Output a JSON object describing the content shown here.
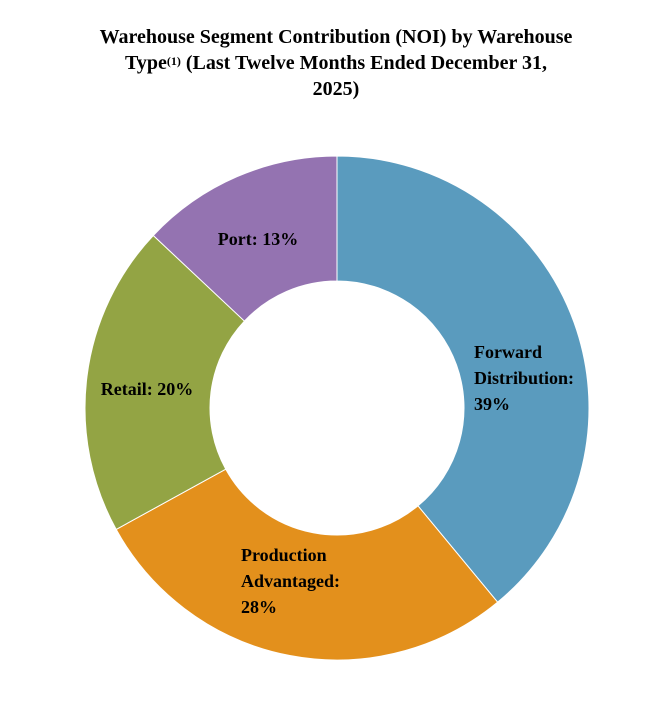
{
  "title": {
    "line1": "Warehouse Segment Contribution (NOI) by Warehouse",
    "line2_a": "Type",
    "line2_sup": "(1)",
    "line2_b": " (Last Twelve Months Ended December 31,",
    "line3": "2025)"
  },
  "chart_data": {
    "type": "pie",
    "donut": true,
    "title": "Warehouse Segment Contribution (NOI) by Warehouse Type(1) (Last Twelve Months Ended December 31, 2025)",
    "slices": [
      {
        "label": "Forward Distribution",
        "value": 39,
        "display": [
          "Forward",
          "Distribution:",
          "39%"
        ],
        "color": "#5A9BBE"
      },
      {
        "label": "Production Advantaged",
        "value": 28,
        "display": [
          "Production",
          "Advantaged:",
          "28%"
        ],
        "color": "#E3901C"
      },
      {
        "label": "Retail",
        "value": 20,
        "display": [
          "Retail: 20%"
        ],
        "color": "#93A444"
      },
      {
        "label": "Port",
        "value": 13,
        "display": [
          "Port: 13%"
        ],
        "color": "#9473B1"
      }
    ]
  }
}
